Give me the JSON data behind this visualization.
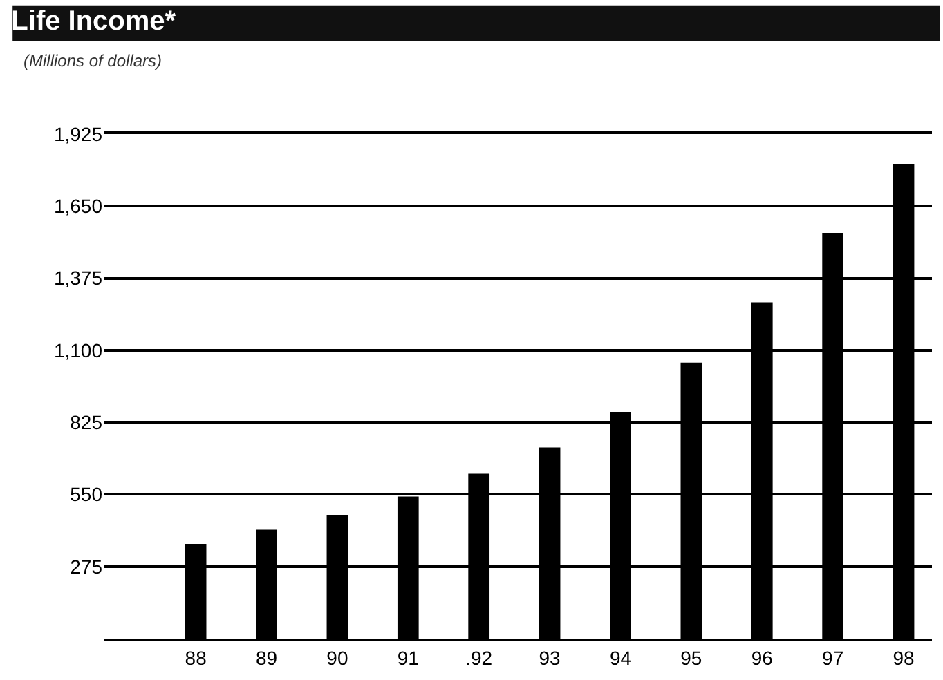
{
  "chart_data": {
    "type": "bar",
    "title": "Life Income*",
    "subtitle": "(Millions of dollars)",
    "categories": [
      "88",
      "89",
      "90",
      "91",
      ".92",
      "93",
      "94",
      "95",
      "96",
      "97",
      "98"
    ],
    "values": [
      361,
      415,
      472,
      542,
      629,
      729,
      865,
      1053,
      1283,
      1548,
      1811
    ],
    "color": "#000000",
    "ylim": [
      0,
      1925
    ],
    "yticks": [
      {
        "value": 275,
        "label": "275"
      },
      {
        "value": 550,
        "label": "550"
      },
      {
        "value": 825,
        "label": "825"
      },
      {
        "value": 1100,
        "label": "1,100"
      },
      {
        "value": 1375,
        "label": "1,375"
      },
      {
        "value": 1650,
        "label": "1,650"
      },
      {
        "value": 1925,
        "label": "1,925"
      }
    ],
    "grid": "y"
  }
}
